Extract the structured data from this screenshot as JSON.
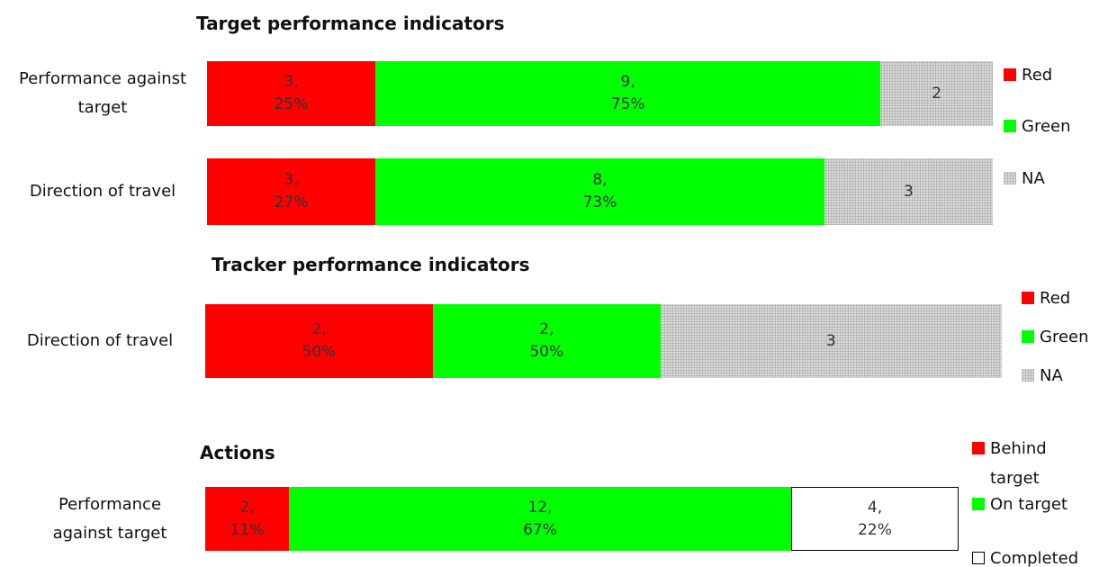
{
  "chart_data": [
    {
      "type": "bar",
      "orientation": "horizontal",
      "stacked": true,
      "title": "Target performance indicators",
      "categories": [
        "Performance against target",
        "Direction of travel"
      ],
      "series": [
        {
          "name": "Red",
          "color": "#ff0000",
          "values": [
            3,
            3
          ],
          "value_labels": [
            [
              "3,",
              "25%"
            ],
            [
              "3,",
              "27%"
            ]
          ]
        },
        {
          "name": "Green",
          "color": "#00ff00",
          "values": [
            9,
            8
          ],
          "value_labels": [
            [
              "9,",
              "75%"
            ],
            [
              "8,",
              "73%"
            ]
          ]
        },
        {
          "name": "NA",
          "color": "#d9d9d9",
          "pattern": "dots",
          "values": [
            2,
            3
          ]
        }
      ]
    },
    {
      "type": "bar",
      "orientation": "horizontal",
      "stacked": true,
      "title": "Tracker performance indicators",
      "categories": [
        "Direction of travel"
      ],
      "series": [
        {
          "name": "Red",
          "color": "#ff0000",
          "values": [
            2
          ],
          "value_labels": [
            [
              "2,",
              "50%"
            ]
          ]
        },
        {
          "name": "Green",
          "color": "#00ff00",
          "values": [
            2
          ],
          "value_labels": [
            [
              "2,",
              "50%"
            ]
          ]
        },
        {
          "name": "NA",
          "color": "#d9d9d9",
          "pattern": "dots",
          "values": [
            3
          ]
        }
      ]
    },
    {
      "type": "bar",
      "orientation": "horizontal",
      "stacked": true,
      "title": "Actions",
      "categories": [
        "Performance against target"
      ],
      "series": [
        {
          "name": "Behind target",
          "color": "#ff0000",
          "values": [
            2
          ],
          "value_labels": [
            [
              "2,",
              "11%"
            ]
          ]
        },
        {
          "name": "On target",
          "color": "#00ff00",
          "values": [
            12
          ],
          "value_labels": [
            [
              "12,",
              "67%"
            ]
          ]
        },
        {
          "name": "Completed",
          "color": "#ffffff",
          "border": "#000000",
          "values": [
            4
          ],
          "value_labels": [
            [
              "4,",
              "22%"
            ]
          ]
        }
      ]
    }
  ]
}
